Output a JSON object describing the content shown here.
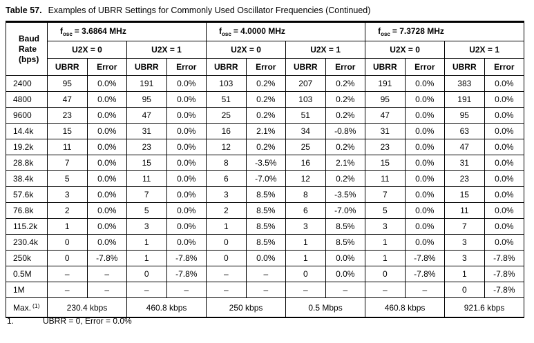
{
  "title": {
    "label": "Table 57.",
    "text": "Examples of UBRR Settings for Commonly Used Oscillator Frequencies (Continued)"
  },
  "table": {
    "baud_header": "Baud Rate (bps)",
    "freq_symbol": {
      "base": "f",
      "sub": "osc"
    },
    "groups": [
      {
        "freq": "= 3.6864 MHz",
        "subgroups": [
          "U2X = 0",
          "U2X = 1"
        ]
      },
      {
        "freq": "= 4.0000 MHz",
        "subgroups": [
          "U2X = 0",
          "U2X = 1"
        ]
      },
      {
        "freq": "= 7.3728 MHz",
        "subgroups": [
          "U2X = 0",
          "U2X = 1"
        ]
      }
    ],
    "col_headers": [
      "UBRR",
      "Error"
    ],
    "rows": [
      {
        "baud": "2400",
        "cells": [
          "95",
          "0.0%",
          "191",
          "0.0%",
          "103",
          "0.2%",
          "207",
          "0.2%",
          "191",
          "0.0%",
          "383",
          "0.0%"
        ]
      },
      {
        "baud": "4800",
        "cells": [
          "47",
          "0.0%",
          "95",
          "0.0%",
          "51",
          "0.2%",
          "103",
          "0.2%",
          "95",
          "0.0%",
          "191",
          "0.0%"
        ]
      },
      {
        "baud": "9600",
        "cells": [
          "23",
          "0.0%",
          "47",
          "0.0%",
          "25",
          "0.2%",
          "51",
          "0.2%",
          "47",
          "0.0%",
          "95",
          "0.0%"
        ]
      },
      {
        "baud": "14.4k",
        "cells": [
          "15",
          "0.0%",
          "31",
          "0.0%",
          "16",
          "2.1%",
          "34",
          "-0.8%",
          "31",
          "0.0%",
          "63",
          "0.0%"
        ]
      },
      {
        "baud": "19.2k",
        "cells": [
          "11",
          "0.0%",
          "23",
          "0.0%",
          "12",
          "0.2%",
          "25",
          "0.2%",
          "23",
          "0.0%",
          "47",
          "0.0%"
        ]
      },
      {
        "baud": "28.8k",
        "cells": [
          "7",
          "0.0%",
          "15",
          "0.0%",
          "8",
          "-3.5%",
          "16",
          "2.1%",
          "15",
          "0.0%",
          "31",
          "0.0%"
        ]
      },
      {
        "baud": "38.4k",
        "cells": [
          "5",
          "0.0%",
          "11",
          "0.0%",
          "6",
          "-7.0%",
          "12",
          "0.2%",
          "11",
          "0.0%",
          "23",
          "0.0%"
        ]
      },
      {
        "baud": "57.6k",
        "cells": [
          "3",
          "0.0%",
          "7",
          "0.0%",
          "3",
          "8.5%",
          "8",
          "-3.5%",
          "7",
          "0.0%",
          "15",
          "0.0%"
        ]
      },
      {
        "baud": "76.8k",
        "cells": [
          "2",
          "0.0%",
          "5",
          "0.0%",
          "2",
          "8.5%",
          "6",
          "-7.0%",
          "5",
          "0.0%",
          "11",
          "0.0%"
        ]
      },
      {
        "baud": "115.2k",
        "cells": [
          "1",
          "0.0%",
          "3",
          "0.0%",
          "1",
          "8.5%",
          "3",
          "8.5%",
          "3",
          "0.0%",
          "7",
          "0.0%"
        ]
      },
      {
        "baud": "230.4k",
        "cells": [
          "0",
          "0.0%",
          "1",
          "0.0%",
          "0",
          "8.5%",
          "1",
          "8.5%",
          "1",
          "0.0%",
          "3",
          "0.0%"
        ]
      },
      {
        "baud": "250k",
        "cells": [
          "0",
          "-7.8%",
          "1",
          "-7.8%",
          "0",
          "0.0%",
          "1",
          "0.0%",
          "1",
          "-7.8%",
          "3",
          "-7.8%"
        ]
      },
      {
        "baud": "0.5M",
        "cells": [
          "–",
          "–",
          "0",
          "-7.8%",
          "–",
          "–",
          "0",
          "0.0%",
          "0",
          "-7.8%",
          "1",
          "-7.8%"
        ]
      },
      {
        "baud": "1M",
        "cells": [
          "–",
          "–",
          "–",
          "–",
          "–",
          "–",
          "–",
          "–",
          "–",
          "–",
          "0",
          "-7.8%"
        ]
      }
    ],
    "max_row": {
      "label": "Max.",
      "footnote_ref": "(1)",
      "values": [
        "230.4 kbps",
        "460.8 kbps",
        "250 kbps",
        "0.5 Mbps",
        "460.8 kbps",
        "921.6 kbps"
      ]
    }
  },
  "footnote": {
    "number": "1.",
    "text": "UBRR = 0, Error = 0.0%"
  }
}
